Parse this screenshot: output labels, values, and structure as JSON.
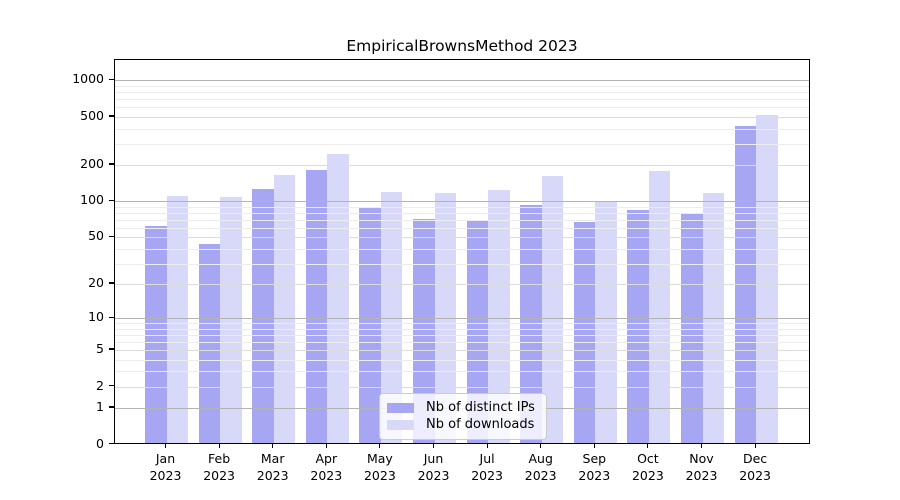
{
  "title": "EmpiricalBrownsMethod 2023",
  "chart_data": {
    "type": "bar",
    "title": "EmpiricalBrownsMethod 2023",
    "xlabel": "",
    "ylabel": "",
    "categories": [
      "Jan",
      "Feb",
      "Mar",
      "Apr",
      "May",
      "Jun",
      "Jul",
      "Aug",
      "Sep",
      "Oct",
      "Nov",
      "Dec"
    ],
    "category_year": "2023",
    "series": [
      {
        "name": "Nb of distinct IPs",
        "color": "#a6a6f2",
        "values": [
          60,
          42,
          122,
          174,
          85,
          68,
          66,
          90,
          65,
          81,
          75,
          405
        ]
      },
      {
        "name": "Nb of downloads",
        "color": "#d8d8f9",
        "values": [
          106,
          105,
          158,
          238,
          114,
          112,
          120,
          155,
          95,
          172,
          113,
          500
        ]
      }
    ],
    "yscale": "log1p",
    "y_ticks": [
      0,
      1,
      2,
      5,
      10,
      20,
      50,
      100,
      200,
      500,
      1000
    ],
    "ylim": [
      0,
      1475
    ],
    "grid": "both",
    "legend_position": "lower center"
  },
  "colors": {
    "background": "#ffffff",
    "axis": "#000000",
    "text": "#000000",
    "grid_major": "#b3b3b3",
    "grid_mid": "#dcdcdc",
    "grid_minor": "#ececec"
  }
}
